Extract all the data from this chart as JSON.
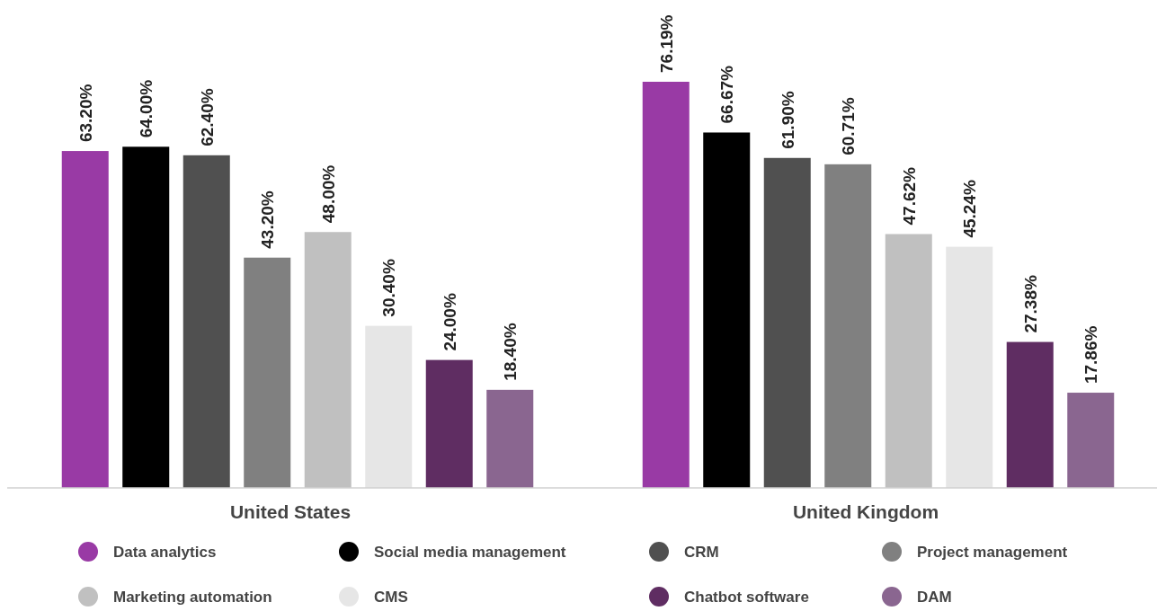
{
  "chart_data": {
    "type": "bar",
    "categories": [
      "United States",
      "United Kingdom"
    ],
    "series": [
      {
        "name": "Data analytics",
        "color": "#993aa5",
        "values": [
          63.2,
          76.19
        ],
        "value_labels": [
          "63.20%",
          "76.19%"
        ]
      },
      {
        "name": "Social media management",
        "color": "#000000",
        "values": [
          64.0,
          66.67
        ],
        "value_labels": [
          "64.00%",
          "66.67%"
        ]
      },
      {
        "name": "CRM",
        "color": "#505050",
        "values": [
          62.4,
          61.9
        ],
        "value_labels": [
          "62.40%",
          "61.90%"
        ]
      },
      {
        "name": "Project management",
        "color": "#808080",
        "values": [
          43.2,
          60.71
        ],
        "value_labels": [
          "43.20%",
          "60.71%"
        ]
      },
      {
        "name": "Marketing automation",
        "color": "#c0c0c0",
        "values": [
          48.0,
          47.62
        ],
        "value_labels": [
          "48.00%",
          "47.62%"
        ]
      },
      {
        "name": "CMS",
        "color": "#e6e6e6",
        "values": [
          30.4,
          45.24
        ],
        "value_labels": [
          "30.40%",
          "45.24%"
        ]
      },
      {
        "name": "Chatbot software",
        "color": "#5f2d62",
        "values": [
          24.0,
          27.38
        ],
        "value_labels": [
          "24.00%",
          "27.38%"
        ]
      },
      {
        "name": "DAM",
        "color": "#8a6690",
        "values": [
          18.4,
          17.86
        ],
        "value_labels": [
          "18.40%",
          "17.86%"
        ]
      }
    ],
    "legend": "bottom"
  }
}
